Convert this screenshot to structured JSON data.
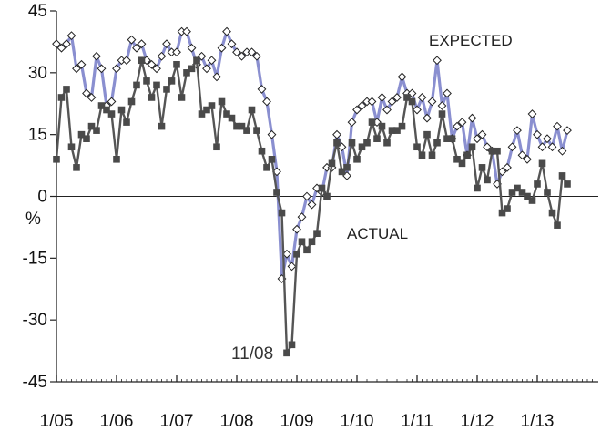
{
  "chart_data": {
    "type": "line",
    "title": "",
    "xlabel": "",
    "ylabel": "%",
    "ylim": [
      -45,
      45
    ],
    "yticks": [
      45,
      30,
      15,
      0,
      -15,
      -30,
      -45
    ],
    "xlim": [
      "2005-01",
      "2013-12"
    ],
    "xticks": [
      "1/05",
      "1/06",
      "1/07",
      "1/08",
      "1/09",
      "1/10",
      "1/11",
      "1/12",
      "1/13"
    ],
    "grid": false,
    "series_colors": {
      "expected": "#8a8fd0",
      "actual": "#555555"
    },
    "series_labels": {
      "expected": "EXPECTED",
      "actual": "ACTUAL"
    },
    "annotations": [
      {
        "text": "11/08",
        "x": "2008-11"
      }
    ],
    "series": [
      {
        "key": "expected",
        "marker": "diamond-open",
        "points": [
          [
            "2005-01",
            37
          ],
          [
            "2005-02",
            36
          ],
          [
            "2005-03",
            37
          ],
          [
            "2005-04",
            39
          ],
          [
            "2005-05",
            31
          ],
          [
            "2005-06",
            32
          ],
          [
            "2005-07",
            25
          ],
          [
            "2005-08",
            24
          ],
          [
            "2005-09",
            34
          ],
          [
            "2005-10",
            31
          ],
          [
            "2005-11",
            22
          ],
          [
            "2005-12",
            23
          ],
          [
            "2006-01",
            31
          ],
          [
            "2006-02",
            33
          ],
          [
            "2006-03",
            33
          ],
          [
            "2006-04",
            38
          ],
          [
            "2006-05",
            36
          ],
          [
            "2006-06",
            37
          ],
          [
            "2006-07",
            33
          ],
          [
            "2006-08",
            32
          ],
          [
            "2006-09",
            31
          ],
          [
            "2006-10",
            34
          ],
          [
            "2006-11",
            37
          ],
          [
            "2006-12",
            35
          ],
          [
            "2007-01",
            35
          ],
          [
            "2007-02",
            40
          ],
          [
            "2007-03",
            40
          ],
          [
            "2007-04",
            36
          ],
          [
            "2007-05",
            32
          ],
          [
            "2007-06",
            34
          ],
          [
            "2007-07",
            31
          ],
          [
            "2007-08",
            33
          ],
          [
            "2007-09",
            29
          ],
          [
            "2007-10",
            36
          ],
          [
            "2007-11",
            40
          ],
          [
            "2007-12",
            37
          ],
          [
            "2008-01",
            35
          ],
          [
            "2008-02",
            34
          ],
          [
            "2008-03",
            35
          ],
          [
            "2008-04",
            35
          ],
          [
            "2008-05",
            34
          ],
          [
            "2008-06",
            26
          ],
          [
            "2008-07",
            23
          ],
          [
            "2008-08",
            15
          ],
          [
            "2008-09",
            6
          ],
          [
            "2008-10",
            -20
          ],
          [
            "2008-11",
            -14
          ],
          [
            "2008-12",
            -17
          ],
          [
            "2009-01",
            -8
          ],
          [
            "2009-02",
            -5
          ],
          [
            "2009-03",
            0
          ],
          [
            "2009-04",
            -2
          ],
          [
            "2009-05",
            2
          ],
          [
            "2009-06",
            1
          ],
          [
            "2009-07",
            7
          ],
          [
            "2009-08",
            7
          ],
          [
            "2009-09",
            15
          ],
          [
            "2009-10",
            12
          ],
          [
            "2009-11",
            5
          ],
          [
            "2009-12",
            18
          ],
          [
            "2010-01",
            21
          ],
          [
            "2010-02",
            22
          ],
          [
            "2010-03",
            23
          ],
          [
            "2010-04",
            23
          ],
          [
            "2010-05",
            18
          ],
          [
            "2010-06",
            24
          ],
          [
            "2010-07",
            21
          ],
          [
            "2010-08",
            23
          ],
          [
            "2010-09",
            24
          ],
          [
            "2010-10",
            29
          ],
          [
            "2010-11",
            25
          ],
          [
            "2010-12",
            25
          ],
          [
            "2011-01",
            21
          ],
          [
            "2011-02",
            24
          ],
          [
            "2011-03",
            19
          ],
          [
            "2011-04",
            23
          ],
          [
            "2011-05",
            33
          ],
          [
            "2011-06",
            22
          ],
          [
            "2011-07",
            25
          ],
          [
            "2011-08",
            14
          ],
          [
            "2011-09",
            17
          ],
          [
            "2011-10",
            18
          ],
          [
            "2011-11",
            10
          ],
          [
            "2011-12",
            19
          ],
          [
            "2012-01",
            14
          ],
          [
            "2012-02",
            15
          ],
          [
            "2012-03",
            12
          ],
          [
            "2012-04",
            11
          ],
          [
            "2012-05",
            3
          ],
          [
            "2012-06",
            6
          ],
          [
            "2012-07",
            7
          ],
          [
            "2012-08",
            12
          ],
          [
            "2012-09",
            16
          ],
          [
            "2012-10",
            10
          ],
          [
            "2012-11",
            9
          ],
          [
            "2012-12",
            20
          ],
          [
            "2013-01",
            15
          ],
          [
            "2013-02",
            12
          ],
          [
            "2013-03",
            14
          ],
          [
            "2013-04",
            12
          ],
          [
            "2013-05",
            17
          ],
          [
            "2013-06",
            11
          ],
          [
            "2013-07",
            16
          ]
        ]
      },
      {
        "key": "actual",
        "marker": "square-filled",
        "points": [
          [
            "2005-01",
            9
          ],
          [
            "2005-02",
            24
          ],
          [
            "2005-03",
            26
          ],
          [
            "2005-04",
            12
          ],
          [
            "2005-05",
            7
          ],
          [
            "2005-06",
            15
          ],
          [
            "2005-07",
            14
          ],
          [
            "2005-08",
            17
          ],
          [
            "2005-09",
            16
          ],
          [
            "2005-10",
            22
          ],
          [
            "2005-11",
            21
          ],
          [
            "2005-12",
            20
          ],
          [
            "2006-01",
            9
          ],
          [
            "2006-02",
            21
          ],
          [
            "2006-03",
            18
          ],
          [
            "2006-04",
            23
          ],
          [
            "2006-05",
            27
          ],
          [
            "2006-06",
            33
          ],
          [
            "2006-07",
            28
          ],
          [
            "2006-08",
            24
          ],
          [
            "2006-09",
            27
          ],
          [
            "2006-10",
            17
          ],
          [
            "2006-11",
            26
          ],
          [
            "2006-12",
            28
          ],
          [
            "2007-01",
            32
          ],
          [
            "2007-02",
            24
          ],
          [
            "2007-03",
            30
          ],
          [
            "2007-04",
            31
          ],
          [
            "2007-05",
            33
          ],
          [
            "2007-06",
            20
          ],
          [
            "2007-07",
            21
          ],
          [
            "2007-08",
            22
          ],
          [
            "2007-09",
            12
          ],
          [
            "2007-10",
            23
          ],
          [
            "2007-11",
            20
          ],
          [
            "2007-12",
            19
          ],
          [
            "2008-01",
            17
          ],
          [
            "2008-02",
            17
          ],
          [
            "2008-03",
            16
          ],
          [
            "2008-04",
            21
          ],
          [
            "2008-05",
            16
          ],
          [
            "2008-06",
            11
          ],
          [
            "2008-07",
            7
          ],
          [
            "2008-08",
            9
          ],
          [
            "2008-09",
            1
          ],
          [
            "2008-10",
            -4
          ],
          [
            "2008-11",
            -38
          ],
          [
            "2008-12",
            -36
          ],
          [
            "2009-01",
            -14
          ],
          [
            "2009-02",
            -11
          ],
          [
            "2009-03",
            -13
          ],
          [
            "2009-04",
            -11
          ],
          [
            "2009-05",
            -9
          ],
          [
            "2009-06",
            2
          ],
          [
            "2009-07",
            0
          ],
          [
            "2009-08",
            8
          ],
          [
            "2009-09",
            13
          ],
          [
            "2009-10",
            6
          ],
          [
            "2009-11",
            7
          ],
          [
            "2009-12",
            13
          ],
          [
            "2010-01",
            9
          ],
          [
            "2010-02",
            12
          ],
          [
            "2010-03",
            13
          ],
          [
            "2010-04",
            18
          ],
          [
            "2010-05",
            14
          ],
          [
            "2010-06",
            17
          ],
          [
            "2010-07",
            13
          ],
          [
            "2010-08",
            16
          ],
          [
            "2010-09",
            16
          ],
          [
            "2010-10",
            17
          ],
          [
            "2010-11",
            24
          ],
          [
            "2010-12",
            23
          ],
          [
            "2011-01",
            12
          ],
          [
            "2011-02",
            10
          ],
          [
            "2011-03",
            15
          ],
          [
            "2011-04",
            10
          ],
          [
            "2011-05",
            13
          ],
          [
            "2011-06",
            20
          ],
          [
            "2011-07",
            14
          ],
          [
            "2011-08",
            14
          ],
          [
            "2011-09",
            9
          ],
          [
            "2011-10",
            8
          ],
          [
            "2011-11",
            10
          ],
          [
            "2011-12",
            12
          ],
          [
            "2012-01",
            2
          ],
          [
            "2012-02",
            7
          ],
          [
            "2012-03",
            4
          ],
          [
            "2012-04",
            11
          ],
          [
            "2012-05",
            11
          ],
          [
            "2012-06",
            -4
          ],
          [
            "2012-07",
            -3
          ],
          [
            "2012-08",
            1
          ],
          [
            "2012-09",
            2
          ],
          [
            "2012-10",
            1
          ],
          [
            "2012-11",
            0
          ],
          [
            "2012-12",
            -1
          ],
          [
            "2013-01",
            3
          ],
          [
            "2013-02",
            8
          ],
          [
            "2013-03",
            1
          ],
          [
            "2013-04",
            -4
          ],
          [
            "2013-05",
            -7
          ],
          [
            "2013-06",
            5
          ],
          [
            "2013-07",
            3
          ]
        ]
      }
    ]
  }
}
